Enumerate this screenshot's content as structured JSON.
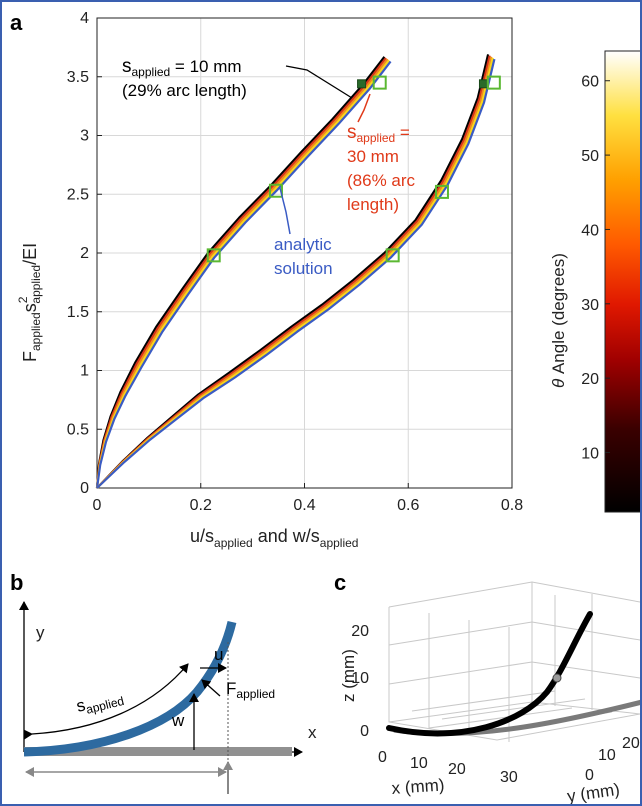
{
  "figure": {
    "panels": {
      "a": "a",
      "b": "b",
      "c": "c"
    }
  },
  "panel_a": {
    "ylabel_parts": {
      "F": "F",
      "applied1": "applied",
      "s": "s",
      "sup2": "2",
      "applied2": "applied",
      "suffix": "/EI"
    },
    "xlabel_parts": {
      "u": "u/s",
      "applied1": "applied",
      "mid": " and w/s",
      "applied2": "applied"
    },
    "annotation_10mm": {
      "line1_s": "s",
      "line1_sub": "applied",
      "line1_rest": " = 10 mm",
      "line2": "(29% arc length)"
    },
    "annotation_30mm": {
      "line1_s": "s",
      "line1_sub": "applied",
      "line1_rest": " =",
      "line2": "30 mm",
      "line3": "(86% arc",
      "line4": "length)"
    },
    "annotation_analytic": {
      "line1": "analytic",
      "line2": "solution"
    },
    "colors": {
      "analytic": "#3a5bc4",
      "red_annotation": "#e03a1a",
      "marker": "#5bb832",
      "curve_black": "#000000",
      "curve_red": "#d8341a",
      "curve_orange": "#f08a1c",
      "curve_yellow": "#f7d61c"
    }
  },
  "colorbar": {
    "label_theta": "θ",
    "label_rest": " Angle (degrees)",
    "ticks": [
      "10",
      "20",
      "30",
      "40",
      "50",
      "60"
    ],
    "range": [
      2,
      64
    ],
    "colormap": "hot"
  },
  "panel_b": {
    "y_label": "y",
    "x_label": "x",
    "s_label": "s",
    "s_sub": "applied",
    "u_label": "u",
    "w_label": "w",
    "F_label": "F",
    "F_sub": "applied",
    "beam_color": "#2d6aa0",
    "ground_color": "#909090"
  },
  "panel_c": {
    "z_label": "z (mm)",
    "x_label": "x (mm)",
    "y_label": "y (mm)",
    "z_ticks": [
      "0",
      "10",
      "20"
    ],
    "x_ticks": [
      "0",
      "10",
      "20",
      "30"
    ],
    "y_ticks": [
      "0",
      "10",
      "20"
    ]
  },
  "chart_data": {
    "type": "line",
    "xlabel": "u/s_applied and w/s_applied",
    "ylabel": "F_applied s^2_applied /EI",
    "xlim": [
      0,
      0.8
    ],
    "ylim": [
      0,
      4
    ],
    "x_ticks": [
      "0",
      "0.2",
      "0.4",
      "0.6",
      "0.8"
    ],
    "y_ticks": [
      "0",
      "0.5",
      "1",
      "1.5",
      "2",
      "2.5",
      "3",
      "3.5",
      "4"
    ],
    "grid": true,
    "series": [
      {
        "group": "u",
        "x": [
          0,
          0.005,
          0.015,
          0.03,
          0.05,
          0.08,
          0.12,
          0.17,
          0.22,
          0.28,
          0.34,
          0.4,
          0.46,
          0.52,
          0.56
        ],
        "y": [
          0,
          0.2,
          0.4,
          0.6,
          0.8,
          1.05,
          1.35,
          1.67,
          1.98,
          2.28,
          2.55,
          2.84,
          3.12,
          3.42,
          3.65
        ]
      },
      {
        "group": "w",
        "x": [
          0,
          0.05,
          0.1,
          0.15,
          0.2,
          0.26,
          0.32,
          0.38,
          0.44,
          0.5,
          0.56,
          0.62,
          0.67,
          0.71,
          0.74,
          0.76
        ],
        "y": [
          0,
          0.22,
          0.42,
          0.6,
          0.78,
          0.96,
          1.15,
          1.35,
          1.54,
          1.75,
          1.98,
          2.26,
          2.6,
          2.95,
          3.3,
          3.67
        ]
      }
    ],
    "markers": [
      {
        "x": 0.225,
        "y": 1.98
      },
      {
        "x": 0.345,
        "y": 2.53
      },
      {
        "x": 0.545,
        "y": 3.45
      },
      {
        "x": 0.57,
        "y": 1.98
      },
      {
        "x": 0.665,
        "y": 2.52
      },
      {
        "x": 0.765,
        "y": 3.45
      }
    ],
    "dark_markers": [
      {
        "x": 0.51,
        "y": 3.44
      },
      {
        "x": 0.745,
        "y": 3.44
      }
    ]
  }
}
